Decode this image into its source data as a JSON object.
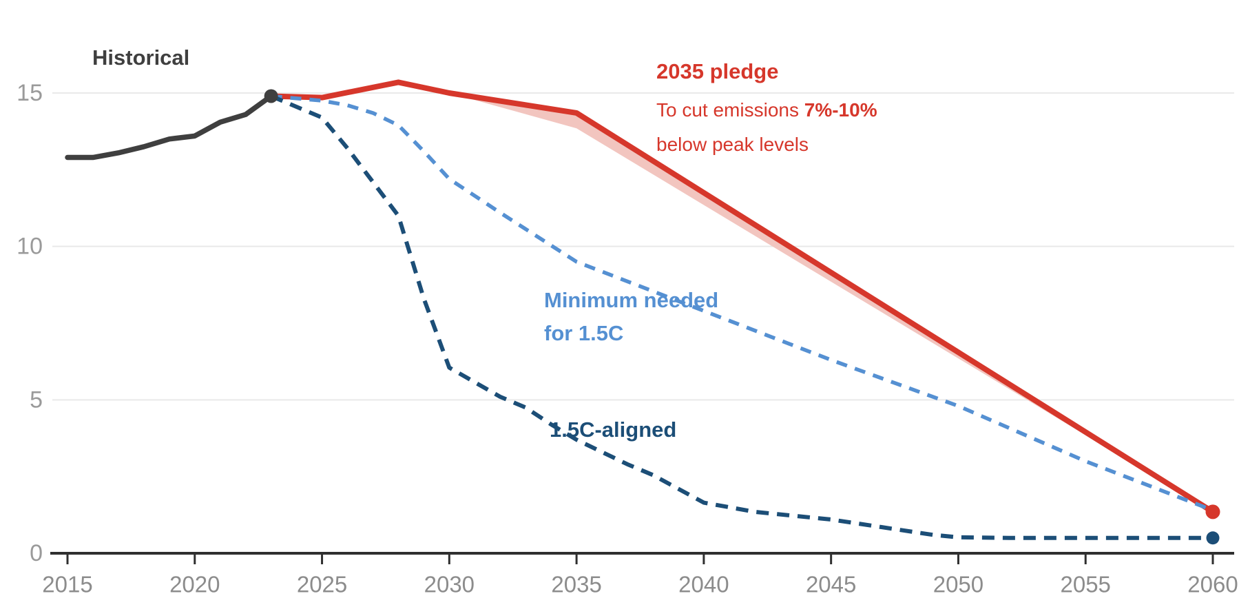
{
  "page": {
    "background": "#ffffff"
  },
  "annotations": {
    "historical": "Historical",
    "pledge_title": "2035 pledge",
    "pledge_line2_prefix": "To cut emissions ",
    "pledge_line2_bold": "7%-10%",
    "pledge_line3": "below peak levels",
    "min_line1": "Minimum needed",
    "min_line2": "for 1.5C",
    "aligned": "1.5C-aligned"
  },
  "colors": {
    "historical": "#3f3f3f",
    "pledge_red": "#d6372b",
    "pledge_band": "#f2c5bf",
    "minimum_blue": "#5590d2",
    "aligned_navy": "#1c4e77",
    "gridline": "#e9e9e9",
    "axis": "#2f2f2f",
    "x_tick_label": "#8c8c8c",
    "y_tick_label": "#9a9a9a"
  },
  "chart_data": {
    "type": "line",
    "title": "",
    "xlabel": "",
    "ylabel": "",
    "x_axis": {
      "min": 2015,
      "max": 2060,
      "ticks": [
        2015,
        2020,
        2025,
        2030,
        2035,
        2040,
        2045,
        2050,
        2055,
        2060
      ]
    },
    "y_axis": {
      "min": 0,
      "max": 15,
      "ticks": [
        0,
        5,
        10,
        15
      ],
      "gridlines": true
    },
    "legend_position": "inline-annotations",
    "series": [
      {
        "id": "historical",
        "name": "Historical",
        "color": "#3f3f3f",
        "style": "solid",
        "width": 7.5,
        "points": [
          [
            2015,
            12.9
          ],
          [
            2016,
            12.9
          ],
          [
            2017,
            13.05
          ],
          [
            2018,
            13.25
          ],
          [
            2019,
            13.5
          ],
          [
            2020,
            13.6
          ],
          [
            2021,
            14.05
          ],
          [
            2022,
            14.3
          ],
          [
            2023,
            14.9
          ]
        ],
        "end_dot": {
          "x": 2023,
          "y": 14.9,
          "r": 10
        }
      },
      {
        "id": "pledge-2035",
        "name": "2035 pledge",
        "color": "#d6372b",
        "style": "solid",
        "width": 8,
        "points": [
          [
            2023,
            14.9
          ],
          [
            2025,
            14.85
          ],
          [
            2028,
            15.35
          ],
          [
            2030,
            15.0
          ],
          [
            2035,
            14.35
          ],
          [
            2060,
            1.35
          ]
        ],
        "end_dot": {
          "x": 2060,
          "y": 1.35,
          "r": 10.5
        }
      },
      {
        "id": "minimum-1-5c",
        "name": "Minimum needed for 1.5C",
        "color": "#5590d2",
        "style": "dashed",
        "width": 5.5,
        "dash": "16 12",
        "points": [
          [
            2023,
            14.9
          ],
          [
            2025,
            14.75
          ],
          [
            2026,
            14.6
          ],
          [
            2027,
            14.35
          ],
          [
            2028,
            13.95
          ],
          [
            2029,
            13.1
          ],
          [
            2030,
            12.2
          ],
          [
            2032,
            11.1
          ],
          [
            2035,
            9.5
          ],
          [
            2040,
            7.9
          ],
          [
            2045,
            6.3
          ],
          [
            2050,
            4.8
          ],
          [
            2055,
            3.0
          ],
          [
            2060,
            1.4
          ]
        ]
      },
      {
        "id": "aligned-1-5c",
        "name": "1.5C-aligned",
        "color": "#1c4e77",
        "style": "dashed",
        "width": 6,
        "dash": "18 12",
        "points": [
          [
            2023,
            14.9
          ],
          [
            2025,
            14.2
          ],
          [
            2026,
            13.2
          ],
          [
            2027,
            12.1
          ],
          [
            2028,
            11.0
          ],
          [
            2029,
            8.3
          ],
          [
            2030,
            6.05
          ],
          [
            2032,
            5.1
          ],
          [
            2033,
            4.75
          ],
          [
            2034,
            4.2
          ],
          [
            2035,
            3.7
          ],
          [
            2036,
            3.3
          ],
          [
            2037,
            2.9
          ],
          [
            2038,
            2.55
          ],
          [
            2039,
            2.1
          ],
          [
            2040,
            1.65
          ],
          [
            2042,
            1.35
          ],
          [
            2045,
            1.1
          ],
          [
            2047,
            0.85
          ],
          [
            2049,
            0.6
          ],
          [
            2050,
            0.52
          ],
          [
            2052,
            0.5
          ],
          [
            2060,
            0.5
          ]
        ],
        "end_dot": {
          "x": 2060,
          "y": 0.5,
          "r": 9.5
        }
      }
    ],
    "band": {
      "id": "pledge-range-band",
      "name": "7%-10% pledge range",
      "color": "#f2c5bf",
      "top": [
        [
          2030,
          15.0
        ],
        [
          2035,
          14.35
        ],
        [
          2060,
          1.35
        ]
      ],
      "bottom": [
        [
          2030,
          15.0
        ],
        [
          2035,
          13.85
        ],
        [
          2060,
          1.35
        ]
      ]
    }
  }
}
